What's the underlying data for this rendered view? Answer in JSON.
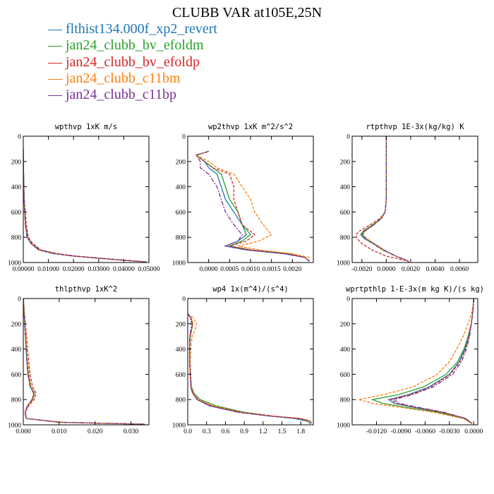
{
  "title": "CLUBB VAR at105E,25N",
  "series": [
    {
      "name": "flthist134.000f_xp2_revert",
      "color": "#1f77b4"
    },
    {
      "name": "jan24_clubb_bv_efoldm",
      "color": "#2ca02c"
    },
    {
      "name": "jan24_clubb_bv_efoldp",
      "color": "#d62728"
    },
    {
      "name": "jan24_clubb_c11bm",
      "color": "#ff7f0e"
    },
    {
      "name": "jan24_clubb_c11bp",
      "color": "#7b3294"
    }
  ],
  "chart_data": [
    {
      "type": "line",
      "title": "wpthvp  1xK m/s",
      "xlim": [
        0,
        0.05
      ],
      "ylim": [
        1000,
        0
      ],
      "xticks": [
        "0.00000",
        "0.01000",
        "0.02000",
        "0.03000",
        "0.04000",
        "0.05000"
      ],
      "xtick_values": [
        0,
        0.01,
        0.02,
        0.03,
        0.04,
        0.05
      ],
      "yticks": [
        "0",
        "200",
        "400",
        "600",
        "800",
        "1000"
      ],
      "ytick_values": [
        0,
        200,
        400,
        600,
        800,
        1000
      ],
      "y": [
        100,
        300,
        500,
        700,
        800,
        850,
        900,
        930,
        950,
        970,
        985,
        995
      ],
      "series": [
        {
          "values": [
            0,
            0.0001,
            0.0003,
            0.0008,
            0.0015,
            0.003,
            0.006,
            0.012,
            0.02,
            0.032,
            0.042,
            0.049
          ]
        },
        {
          "values": [
            0,
            0.0001,
            0.0003,
            0.0009,
            0.0017,
            0.0032,
            0.0065,
            0.013,
            0.021,
            0.033,
            0.042,
            0.049
          ]
        },
        {
          "values": [
            0,
            0.0001,
            0.0004,
            0.0012,
            0.002,
            0.0038,
            0.007,
            0.0135,
            0.0215,
            0.033,
            0.0425,
            0.049
          ]
        },
        {
          "values": [
            0,
            0.0001,
            0.0003,
            0.0008,
            0.0016,
            0.0031,
            0.0062,
            0.0125,
            0.0205,
            0.032,
            0.042,
            0.049
          ]
        },
        {
          "values": [
            0,
            0.0001,
            0.0003,
            0.0009,
            0.0016,
            0.0033,
            0.0066,
            0.013,
            0.021,
            0.0325,
            0.042,
            0.049
          ]
        }
      ]
    },
    {
      "type": "line",
      "title": "wp2thvp  1xK m^2/s^2",
      "xlim": [
        -0.0005,
        0.0025
      ],
      "ylim": [
        1000,
        0
      ],
      "xticks": [
        "0.0000",
        "0.0005",
        "0.0010",
        "0.0015",
        "0.0020"
      ],
      "xtick_values": [
        0,
        0.0005,
        0.001,
        0.0015,
        0.002
      ],
      "yticks": [
        "0",
        "200",
        "400",
        "600",
        "800",
        "1000"
      ],
      "ytick_values": [
        0,
        200,
        400,
        600,
        800,
        1000
      ],
      "y": [
        120,
        150,
        200,
        250,
        300,
        400,
        500,
        600,
        700,
        780,
        830,
        870,
        900,
        930,
        960,
        990
      ],
      "series": [
        {
          "values": [
            0,
            -0.0003,
            -0.0001,
            0,
            0.0002,
            0.0003,
            0.0004,
            0.0006,
            0.0008,
            0.0009,
            0.0007,
            0.0004,
            0.0009,
            0.0018,
            0.0023,
            0.0024
          ]
        },
        {
          "values": [
            0,
            -0.0003,
            -0.0001,
            0.0001,
            0.0003,
            0.0004,
            0.0005,
            0.0007,
            0.0008,
            0.001,
            0.0008,
            0.0005,
            0.001,
            0.0019,
            0.0023,
            0.0024
          ]
        },
        {
          "values": [
            0,
            -0.0003,
            -0.0001,
            0.0001,
            0.0005,
            0.0006,
            0.0006,
            0.0007,
            0.0008,
            0.0011,
            0.0009,
            0.0005,
            0.001,
            0.0019,
            0.0023,
            0.0024
          ]
        },
        {
          "values": [
            0,
            -0.0003,
            0,
            0.0002,
            0.0006,
            0.0008,
            0.001,
            0.0011,
            0.0013,
            0.0015,
            0.0012,
            0.0007,
            0.0012,
            0.002,
            0.0024,
            0.0024
          ]
        },
        {
          "values": [
            0,
            -0.0003,
            -0.0002,
            -0.0002,
            0,
            0.0002,
            0.0003,
            0.0004,
            0.0006,
            0.0008,
            0.0007,
            0.0004,
            0.0009,
            0.0018,
            0.0023,
            0.0024
          ]
        }
      ]
    },
    {
      "type": "line",
      "title": "rtpthvp  1E-3x(kg/kg) K",
      "xlim": [
        -0.0028,
        0.0075
      ],
      "ylim": [
        1000,
        0
      ],
      "xticks": [
        "-0.0020",
        "0.0000",
        "0.0020",
        "0.0040",
        "0.0060"
      ],
      "xtick_values": [
        -0.002,
        0,
        0.002,
        0.004,
        0.006
      ],
      "yticks": [
        "0",
        "200",
        "400",
        "600",
        "800",
        "1000"
      ],
      "ytick_values": [
        0,
        200,
        400,
        600,
        800,
        1000
      ],
      "y": [
        0,
        200,
        400,
        500,
        600,
        650,
        700,
        750,
        780,
        810,
        850,
        900,
        950,
        980,
        990,
        1000
      ],
      "series": [
        {
          "values": [
            0,
            0,
            0,
            0,
            -0.0001,
            -0.0004,
            -0.001,
            -0.0018,
            -0.002,
            -0.0017,
            -0.001,
            -0.0002,
            0.0008,
            0.0016,
            0.0018,
            0.0018
          ]
        },
        {
          "values": [
            0,
            0,
            0,
            0,
            -0.0001,
            -0.0004,
            -0.0011,
            -0.0019,
            -0.0021,
            -0.0018,
            -0.0011,
            -0.0003,
            0.0008,
            0.0016,
            0.0018,
            0.0018
          ]
        },
        {
          "values": [
            0,
            0,
            0,
            0,
            -0.0001,
            -0.0005,
            -0.0013,
            -0.0022,
            -0.0025,
            -0.0024,
            -0.002,
            -0.0012,
            0,
            0.0014,
            0.0018,
            0.0018
          ]
        },
        {
          "values": [
            0,
            0,
            0,
            0,
            -0.0001,
            -0.0004,
            -0.001,
            -0.0017,
            -0.0019,
            -0.0016,
            -0.001,
            -0.0002,
            0.0008,
            0.0016,
            0.0018,
            0.0018
          ]
        },
        {
          "values": [
            0,
            0,
            0,
            0,
            -0.0001,
            -0.0004,
            -0.001,
            -0.0018,
            -0.002,
            -0.0018,
            -0.0011,
            -0.0003,
            0.0008,
            0.0016,
            0.0018,
            0.0018
          ]
        }
      ]
    },
    {
      "type": "line",
      "title": "thlpthvp  1xK^2",
      "xlim": [
        0,
        0.035
      ],
      "ylim": [
        1000,
        0
      ],
      "xticks": [
        "0.000",
        "0.010",
        "0.020",
        "0.030"
      ],
      "xtick_values": [
        0,
        0.01,
        0.02,
        0.03
      ],
      "yticks": [
        "0",
        "200",
        "400",
        "600",
        "800",
        "1000"
      ],
      "ytick_values": [
        0,
        200,
        400,
        600,
        800,
        1000
      ],
      "y": [
        0,
        100,
        200,
        300,
        400,
        500,
        600,
        700,
        750,
        800,
        850,
        900,
        950,
        980,
        995
      ],
      "series": [
        {
          "values": [
            0,
            0.0002,
            0.0004,
            0.0006,
            0.0008,
            0.001,
            0.0013,
            0.002,
            0.003,
            0.0025,
            0.0012,
            0.0005,
            0.0008,
            0.01,
            0.034
          ]
        },
        {
          "values": [
            0,
            0.0002,
            0.0004,
            0.0006,
            0.0008,
            0.001,
            0.0014,
            0.0021,
            0.0031,
            0.0026,
            0.0012,
            0.0005,
            0.0008,
            0.01,
            0.034
          ]
        },
        {
          "values": [
            0,
            0.0003,
            0.0006,
            0.0009,
            0.0012,
            0.0015,
            0.0019,
            0.0026,
            0.0036,
            0.003,
            0.0015,
            0.0006,
            0.0009,
            0.011,
            0.034
          ]
        },
        {
          "values": [
            0,
            0.0003,
            0.0006,
            0.0008,
            0.0011,
            0.0013,
            0.0016,
            0.0022,
            0.0032,
            0.0027,
            0.0013,
            0.0005,
            0.0008,
            0.01,
            0.034
          ]
        },
        {
          "values": [
            0,
            0.0002,
            0.0004,
            0.0006,
            0.0008,
            0.001,
            0.0013,
            0.0019,
            0.0029,
            0.0024,
            0.0011,
            0.0005,
            0.0008,
            0.01,
            0.034
          ]
        }
      ]
    },
    {
      "type": "line",
      "title": "wp4  1x(m^4)/(s^4)",
      "xlim": [
        0,
        2.0
      ],
      "ylim": [
        1000,
        0
      ],
      "xticks": [
        "0.0",
        "0.3",
        "0.6",
        "0.9",
        "1.2",
        "1.5",
        "1.8"
      ],
      "xtick_values": [
        0,
        0.3,
        0.6,
        0.9,
        1.2,
        1.5,
        1.8
      ],
      "yticks": [
        "0",
        "200",
        "400",
        "600",
        "800",
        "1000"
      ],
      "ytick_values": [
        0,
        200,
        400,
        600,
        800,
        1000
      ],
      "y": [
        120,
        150,
        200,
        250,
        300,
        400,
        500,
        600,
        700,
        750,
        800,
        850,
        900,
        930,
        950,
        970,
        990
      ],
      "series": [
        {
          "values": [
            0,
            0.05,
            0.08,
            0.06,
            0.04,
            0.03,
            0.03,
            0.04,
            0.05,
            0.08,
            0.15,
            0.35,
            0.8,
            1.3,
            1.7,
            1.9,
            1.95
          ]
        },
        {
          "values": [
            0,
            0.05,
            0.08,
            0.06,
            0.04,
            0.03,
            0.03,
            0.04,
            0.06,
            0.1,
            0.2,
            0.45,
            0.9,
            1.35,
            1.75,
            1.9,
            1.95
          ]
        },
        {
          "values": [
            0,
            0.05,
            0.08,
            0.06,
            0.04,
            0.03,
            0.03,
            0.04,
            0.05,
            0.08,
            0.16,
            0.38,
            0.85,
            1.35,
            1.8,
            1.95,
            1.97
          ]
        },
        {
          "values": [
            0,
            0.08,
            0.14,
            0.12,
            0.07,
            0.05,
            0.04,
            0.05,
            0.06,
            0.09,
            0.17,
            0.4,
            0.85,
            1.35,
            1.8,
            1.95,
            1.97
          ]
        },
        {
          "values": [
            0,
            0.04,
            0.06,
            0.05,
            0.03,
            0.03,
            0.03,
            0.04,
            0.05,
            0.08,
            0.15,
            0.35,
            0.8,
            1.3,
            1.75,
            1.95,
            1.97
          ]
        }
      ]
    },
    {
      "type": "line",
      "title": "wprtpthlp  1-E-3x(m kg K)/(s kg)",
      "xlim": [
        -0.015,
        0.0005
      ],
      "ylim": [
        1000,
        0
      ],
      "xticks": [
        "-0.0120",
        "-0.0090",
        "-0.0060",
        "-0.0030",
        "0.0000"
      ],
      "xtick_values": [
        -0.012,
        -0.009,
        -0.006,
        -0.003,
        0
      ],
      "yticks": [
        "0",
        "200",
        "400",
        "600",
        "800",
        "1000"
      ],
      "ytick_values": [
        0,
        200,
        400,
        600,
        800,
        1000
      ],
      "y": [
        0,
        100,
        200,
        300,
        400,
        500,
        600,
        700,
        760,
        800,
        830,
        860,
        900,
        950,
        990
      ],
      "series": [
        {
          "values": [
            0,
            -0.0001,
            -0.0003,
            -0.0006,
            -0.0011,
            -0.0018,
            -0.003,
            -0.0055,
            -0.008,
            -0.0105,
            -0.0098,
            -0.0075,
            -0.004,
            -0.001,
            -0.0002
          ]
        },
        {
          "values": [
            0,
            -0.0001,
            -0.0003,
            -0.0007,
            -0.0012,
            -0.002,
            -0.0034,
            -0.0062,
            -0.0092,
            -0.0125,
            -0.0112,
            -0.0085,
            -0.0045,
            -0.0012,
            -0.0002
          ]
        },
        {
          "values": [
            0,
            -0.0001,
            -0.0003,
            -0.0006,
            -0.001,
            -0.0017,
            -0.0029,
            -0.0053,
            -0.0078,
            -0.0102,
            -0.0095,
            -0.0073,
            -0.0039,
            -0.001,
            -0.0002
          ]
        },
        {
          "values": [
            0,
            -0.0002,
            -0.0007,
            -0.0013,
            -0.0021,
            -0.003,
            -0.0045,
            -0.0075,
            -0.011,
            -0.0142,
            -0.0125,
            -0.0092,
            -0.005,
            -0.0013,
            -0.0002
          ]
        },
        {
          "values": [
            0,
            -0.0001,
            -0.0003,
            -0.0005,
            -0.0009,
            -0.0015,
            -0.0026,
            -0.005,
            -0.0075,
            -0.0098,
            -0.0092,
            -0.007,
            -0.0037,
            -0.001,
            -0.0002
          ]
        }
      ]
    }
  ]
}
